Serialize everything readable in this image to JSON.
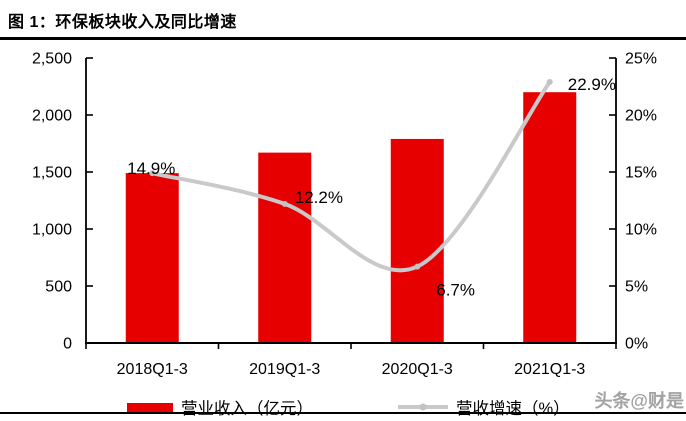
{
  "figure": {
    "title": "图 1：环保板块收入及同比增速",
    "watermark": "头条@财是"
  },
  "colors": {
    "bar": "#e60000",
    "line": "#c9c9c9",
    "marker": "#c2c2c2",
    "axis": "#000000",
    "label_text": "#000000"
  },
  "chart_data": {
    "type": "bar",
    "subtype": "bar+line combo, dual axis",
    "title": "环保板块收入及同比增速",
    "categories": [
      "2018Q1-3",
      "2019Q1-3",
      "2020Q1-3",
      "2021Q1-3"
    ],
    "series": [
      {
        "name": "营业收入（亿元）",
        "type": "bar",
        "axis": "left",
        "values": [
          1490,
          1670,
          1790,
          2200
        ]
      },
      {
        "name": "营收增速（%）",
        "type": "line",
        "axis": "right",
        "values": [
          14.9,
          12.2,
          6.7,
          22.9
        ],
        "point_labels": [
          "14.9%",
          "12.2%",
          "6.7%",
          "22.9%"
        ]
      }
    ],
    "left_axis": {
      "min": 0,
      "max": 2500,
      "tick_step": 500,
      "tick_labels": [
        "0",
        "500",
        "1,000",
        "1,500",
        "2,000",
        "2,500"
      ]
    },
    "right_axis": {
      "min": 0,
      "max": 25,
      "tick_step": 5,
      "tick_labels": [
        "0%",
        "5%",
        "10%",
        "15%",
        "20%",
        "25%"
      ]
    },
    "grid": false,
    "legend_position": "bottom",
    "xlabel": "",
    "ylabel": ""
  },
  "legend": {
    "items": [
      {
        "label": "营业收入（亿元）",
        "swatch": "bar"
      },
      {
        "label": "营收增速（%）",
        "swatch": "line"
      }
    ]
  }
}
